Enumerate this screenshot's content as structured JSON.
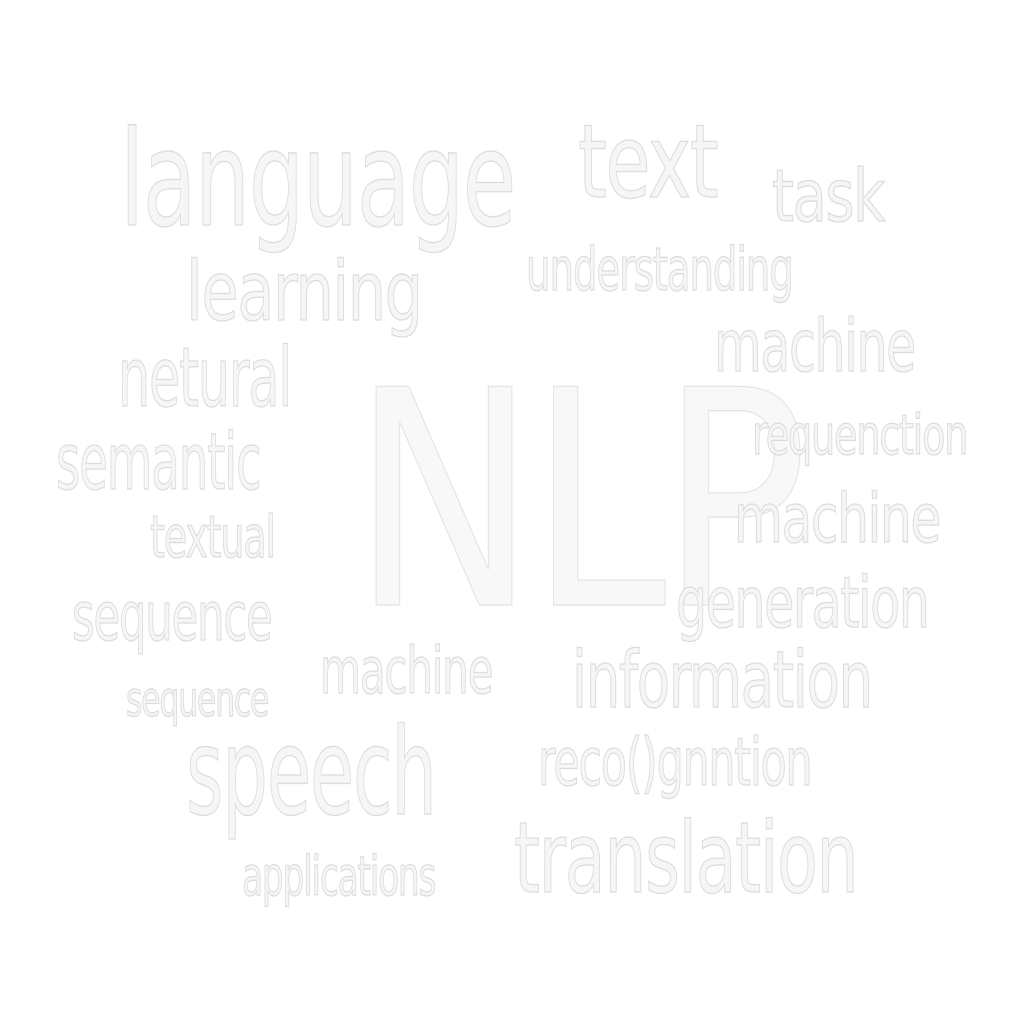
{
  "word_cloud": {
    "center": "NLP",
    "words": {
      "language": "language",
      "text": "text",
      "task": "task",
      "learning": "learning",
      "understanding": "understanding",
      "machine_1": "machine",
      "netural": "netural",
      "requenction": "requenction",
      "semantic": "semantic",
      "machine_2": "machine",
      "textual": "textual",
      "generation": "generation",
      "sequence_1": "sequence",
      "machine_3": "machine",
      "information": "information",
      "sequence_2": "sequence",
      "speech": "speech",
      "recognition": "reco()gnntion",
      "applications": "applications",
      "translation": "translation"
    }
  }
}
